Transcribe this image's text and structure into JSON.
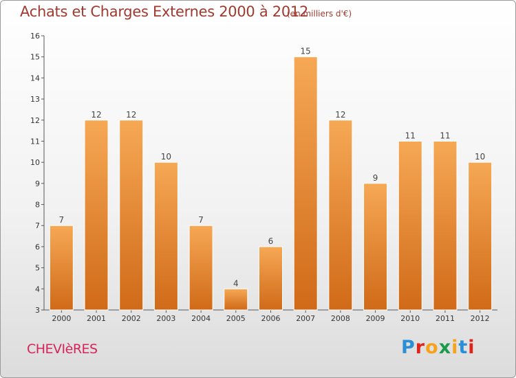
{
  "title": "Achats et Charges Externes 2000 à 2012",
  "subtitle": "(en milliers d'€)",
  "commune": "CHEVIèRES",
  "logo": {
    "text": "Proxiti",
    "letter_colors": [
      "#2a8fd6",
      "#e2231a",
      "#f7a21b",
      "#1a9b4b",
      "#f7a21b",
      "#2a8fd6",
      "#e2231a"
    ]
  },
  "colors": {
    "bar_top": "#f6a855",
    "bar_bottom": "#d06a18",
    "title": "#a03a2f",
    "commune": "#d4245a"
  },
  "chart_data": {
    "type": "bar",
    "title": "Achats et Charges Externes 2000 à 2012",
    "subtitle": "(en milliers d'€)",
    "xlabel": "",
    "ylabel": "",
    "categories": [
      "2000",
      "2001",
      "2002",
      "2003",
      "2004",
      "2005",
      "2006",
      "2007",
      "2008",
      "2009",
      "2010",
      "2011",
      "2012"
    ],
    "values": [
      7,
      12,
      12,
      10,
      7,
      4,
      6,
      15,
      12,
      9,
      11,
      11,
      10
    ],
    "ylim": [
      3,
      16
    ],
    "yticks": [
      3,
      4,
      5,
      6,
      7,
      8,
      9,
      10,
      11,
      12,
      13,
      14,
      15,
      16
    ],
    "grid": false,
    "legend": "none"
  }
}
